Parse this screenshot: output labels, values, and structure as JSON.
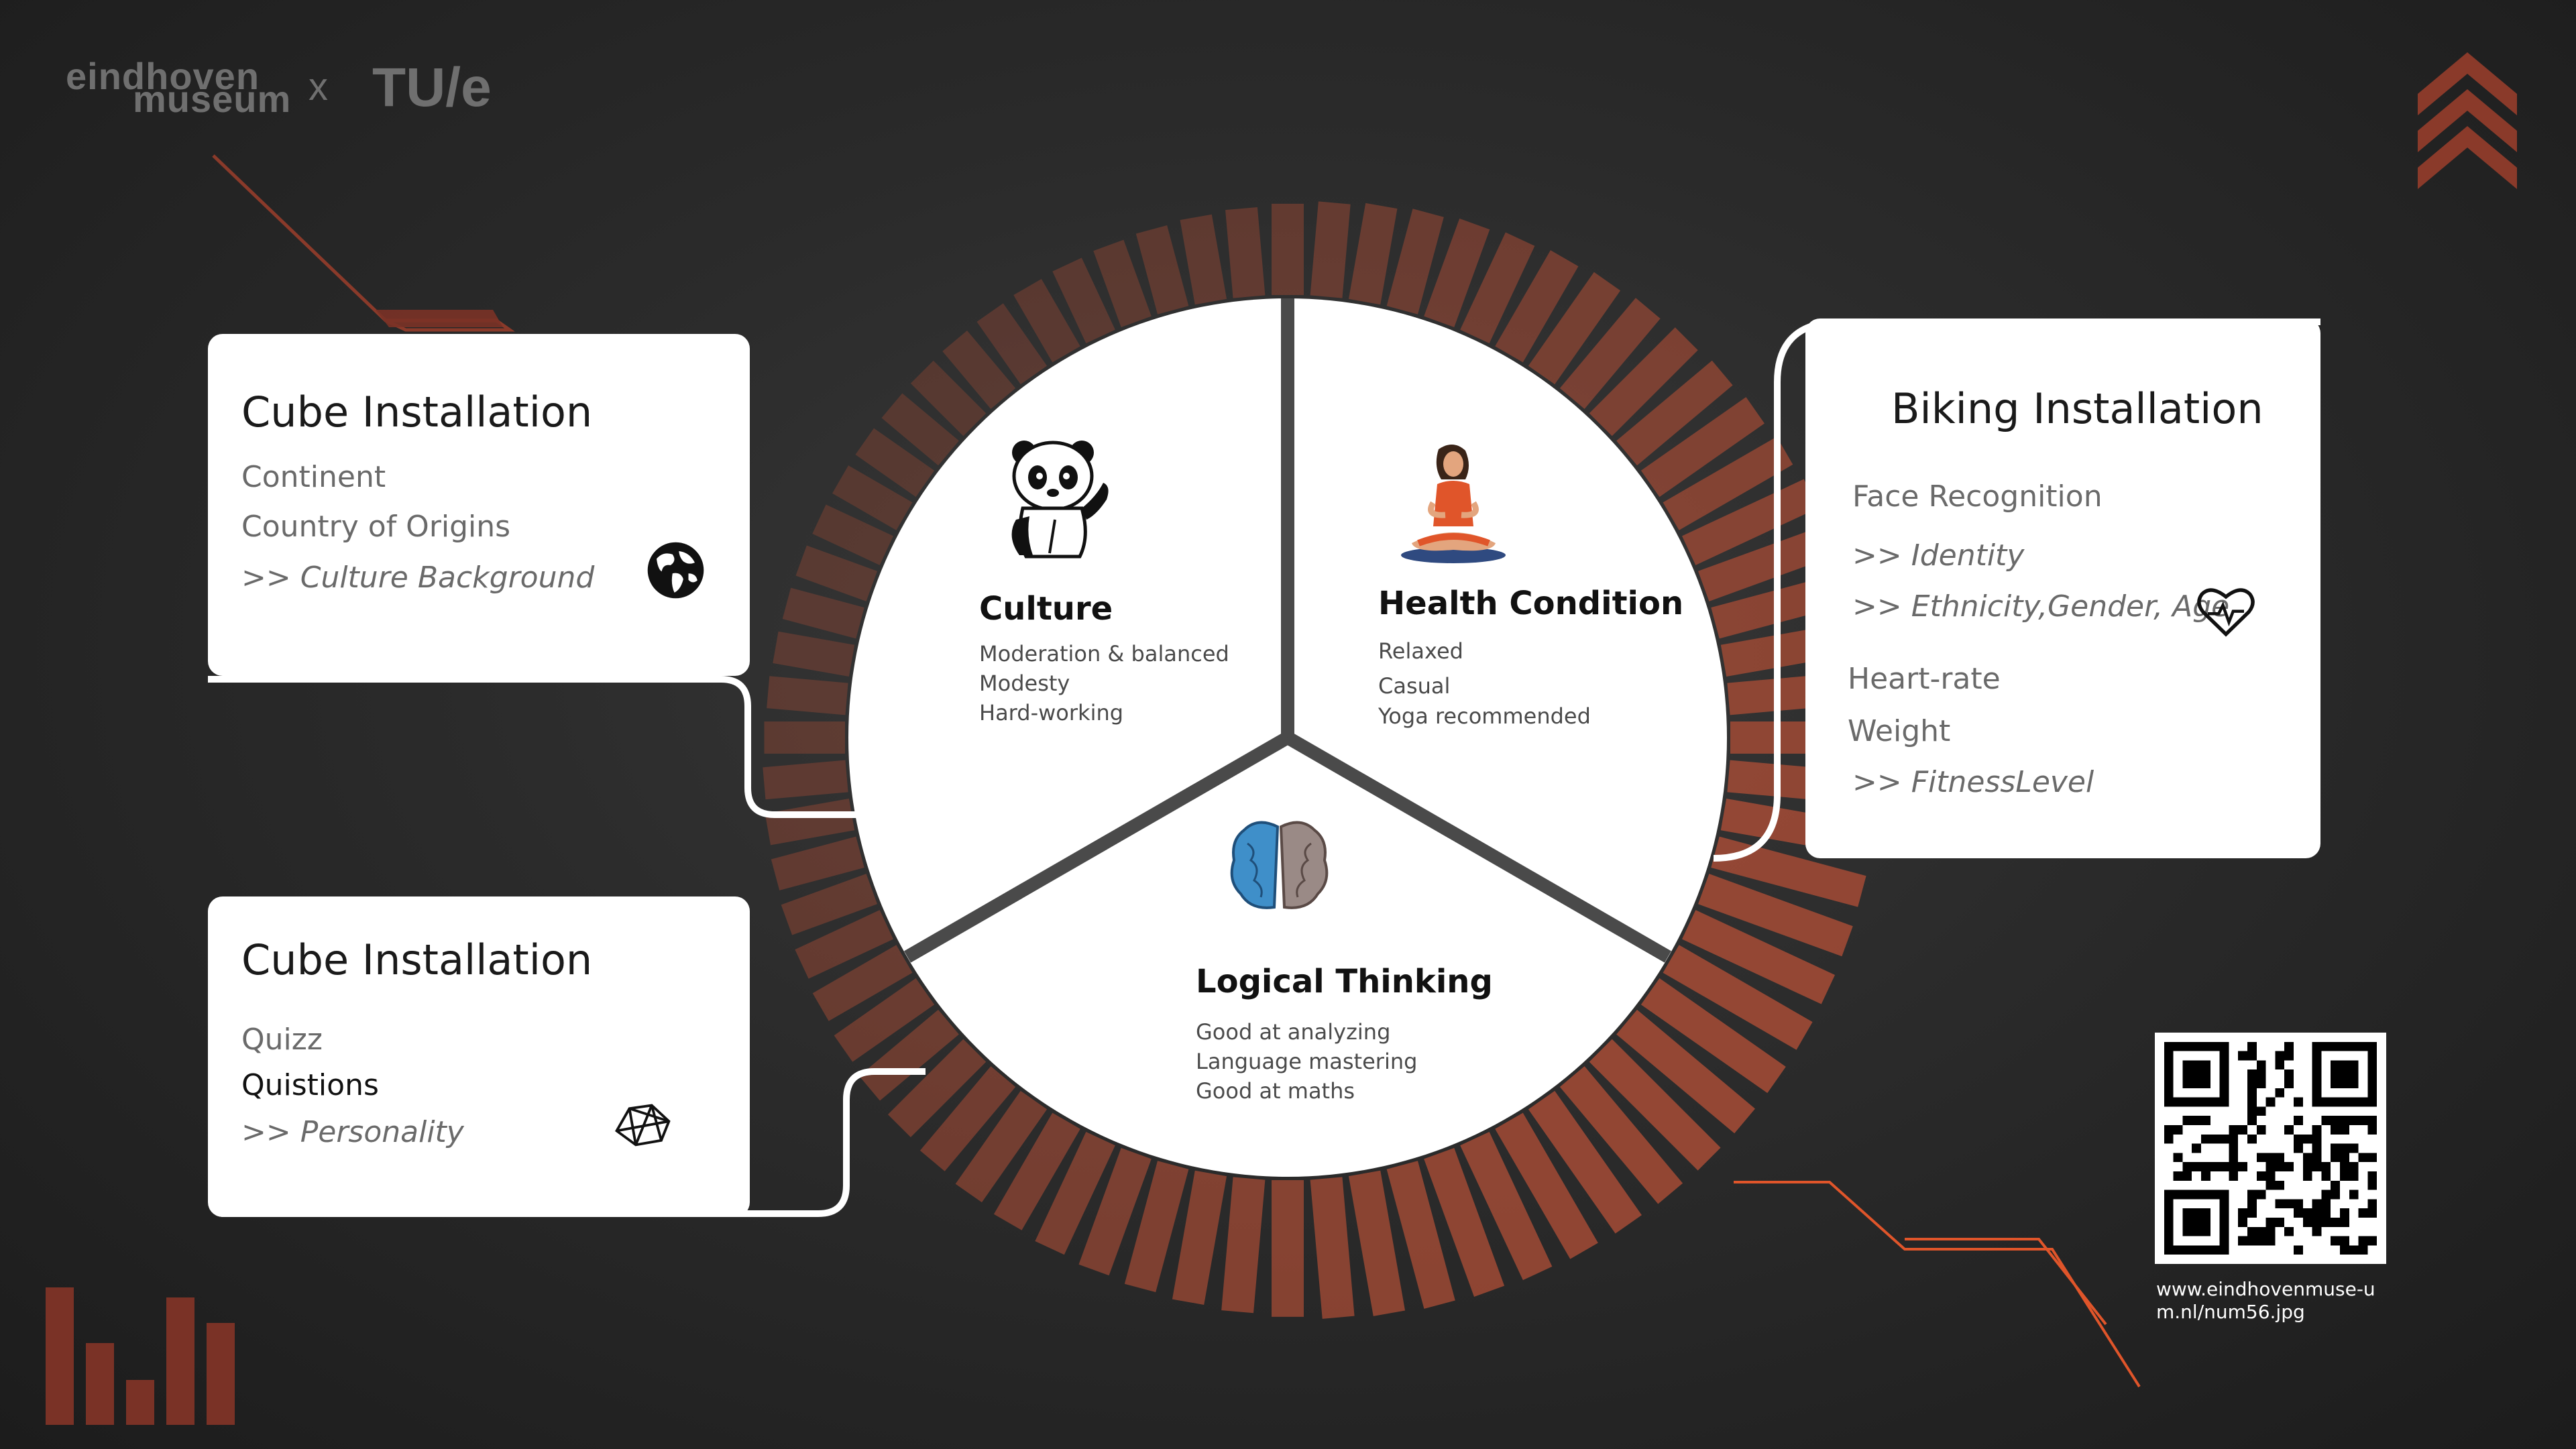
{
  "logo": {
    "museum_line1": "eindhoven",
    "museum_line2": "museum",
    "separator": "x",
    "partner": "TU/e"
  },
  "colors": {
    "accent": "#a04a35",
    "orange_line": "#e0552a",
    "card_bg": "#ffffff",
    "background": "#2b2b2b"
  },
  "cube_card_top": {
    "title": "Cube Installation",
    "items": [
      "Continent",
      "Country of Origins",
      ">> Culture Background"
    ],
    "icon": "globe-icon"
  },
  "cube_card_bottom": {
    "title": "Cube Installation",
    "items": [
      "Quizz",
      "Quistions",
      ">> Personality"
    ],
    "icon": "network-mesh-icon"
  },
  "biking_card": {
    "title": "Biking Installation",
    "items": [
      "Face Recognition",
      ">> Identity",
      ">> Ethnicity,Gender, Age",
      "Heart-rate",
      "Weight",
      ">> FitnessLevel"
    ],
    "icon": "heartbeat-icon"
  },
  "circle": {
    "culture": {
      "title": "Culture",
      "lines": [
        "Moderation & balanced",
        "Modesty",
        "Hard-working"
      ],
      "icon": "panda-icon"
    },
    "health": {
      "title": "Health Condition",
      "lines": [
        "Relaxed",
        "Casual",
        "Yoga recommended"
      ],
      "icon": "yoga-person-icon"
    },
    "logic": {
      "title": "Logical Thinking",
      "lines": [
        "Good at analyzing",
        "Language mastering",
        "Good at maths"
      ],
      "icon": "brain-icon"
    }
  },
  "qr": {
    "caption": "www.eindhovenmuse-um.nl/num56.jpg",
    "icon": "qr-code-icon"
  }
}
